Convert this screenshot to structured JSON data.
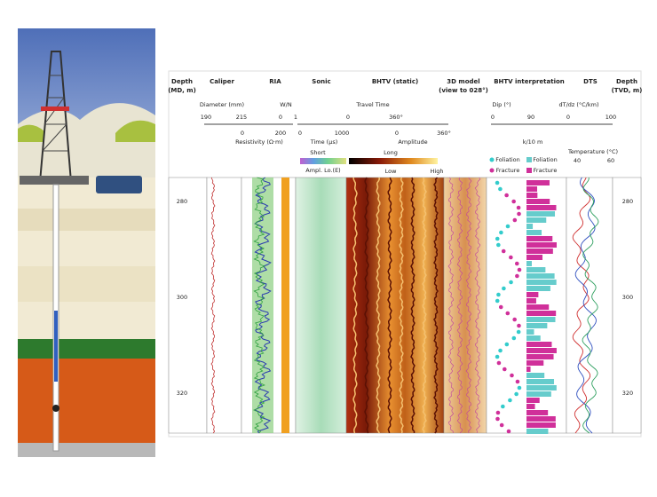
{
  "headers": [
    [
      "Depth",
      "(MD, m)"
    ],
    [
      "Caliper"
    ],
    [
      "RIA"
    ],
    [
      "Sonic"
    ],
    [
      "BHTV (static)"
    ],
    [
      "3D model",
      "(view to 028°)"
    ],
    [
      "BHTV interpretation"
    ],
    [
      "DTS"
    ],
    [
      "Depth",
      "(TVD, m)"
    ]
  ],
  "scales": {
    "top_labels": [
      "Diameter (mm)",
      "W/N",
      "Travel Time",
      "Dip (°)",
      "dT/dz (°C/km)"
    ],
    "top_ticks": [
      "190",
      "215",
      "0",
      "1",
      "0",
      "360°",
      "0",
      "90",
      "0",
      "100"
    ],
    "bottom_labels": [
      "Resistivity (Ω·m)",
      "Time (µs)",
      "Amplitude",
      "k/10 m",
      "Temperature (°C)"
    ],
    "bottom_ticks": [
      "0",
      "200",
      "0",
      "1000",
      "0",
      "360°",
      "40",
      "60"
    ],
    "colorbar": [
      "Short",
      "Long",
      "Low",
      "High",
      "Ampl. Lo.(E)"
    ]
  },
  "legend": [
    "Foliation",
    "Foliation",
    "Fracture",
    "Fracture"
  ],
  "depth_left": [
    "280",
    "300",
    "320"
  ],
  "depth_right": [
    "280",
    "300",
    "320"
  ]
}
